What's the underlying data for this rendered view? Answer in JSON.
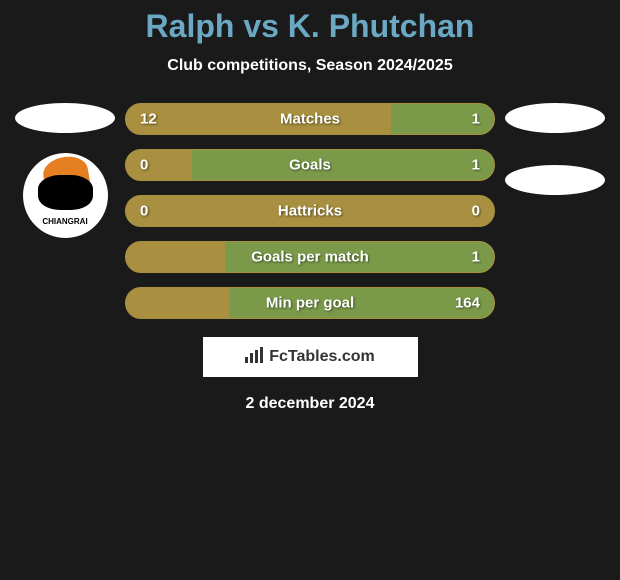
{
  "title": "Ralph vs K. Phutchan",
  "subtitle": "Club competitions, Season 2024/2025",
  "colors": {
    "background": "#1a1a1a",
    "title_color": "#6aa8c4",
    "text_color": "#ffffff",
    "bar_left": "#a89040",
    "bar_right": "#7a9a4a",
    "footer_bg": "#ffffff"
  },
  "stats": [
    {
      "label": "Matches",
      "left_val": "12",
      "right_val": "1",
      "left_pct": 72,
      "right_pct": 28
    },
    {
      "label": "Goals",
      "left_val": "0",
      "right_val": "1",
      "left_pct": 18,
      "right_pct": 82
    },
    {
      "label": "Hattricks",
      "left_val": "0",
      "right_val": "0",
      "left_pct": 100,
      "right_pct": 0
    },
    {
      "label": "Goals per match",
      "left_val": "",
      "right_val": "1",
      "left_pct": 27,
      "right_pct": 73
    },
    {
      "label": "Min per goal",
      "left_val": "",
      "right_val": "164",
      "left_pct": 28,
      "right_pct": 72
    }
  ],
  "footer_brand": "FcTables.com",
  "date": "2 december 2024",
  "badge_text": "CHIANGRAI"
}
